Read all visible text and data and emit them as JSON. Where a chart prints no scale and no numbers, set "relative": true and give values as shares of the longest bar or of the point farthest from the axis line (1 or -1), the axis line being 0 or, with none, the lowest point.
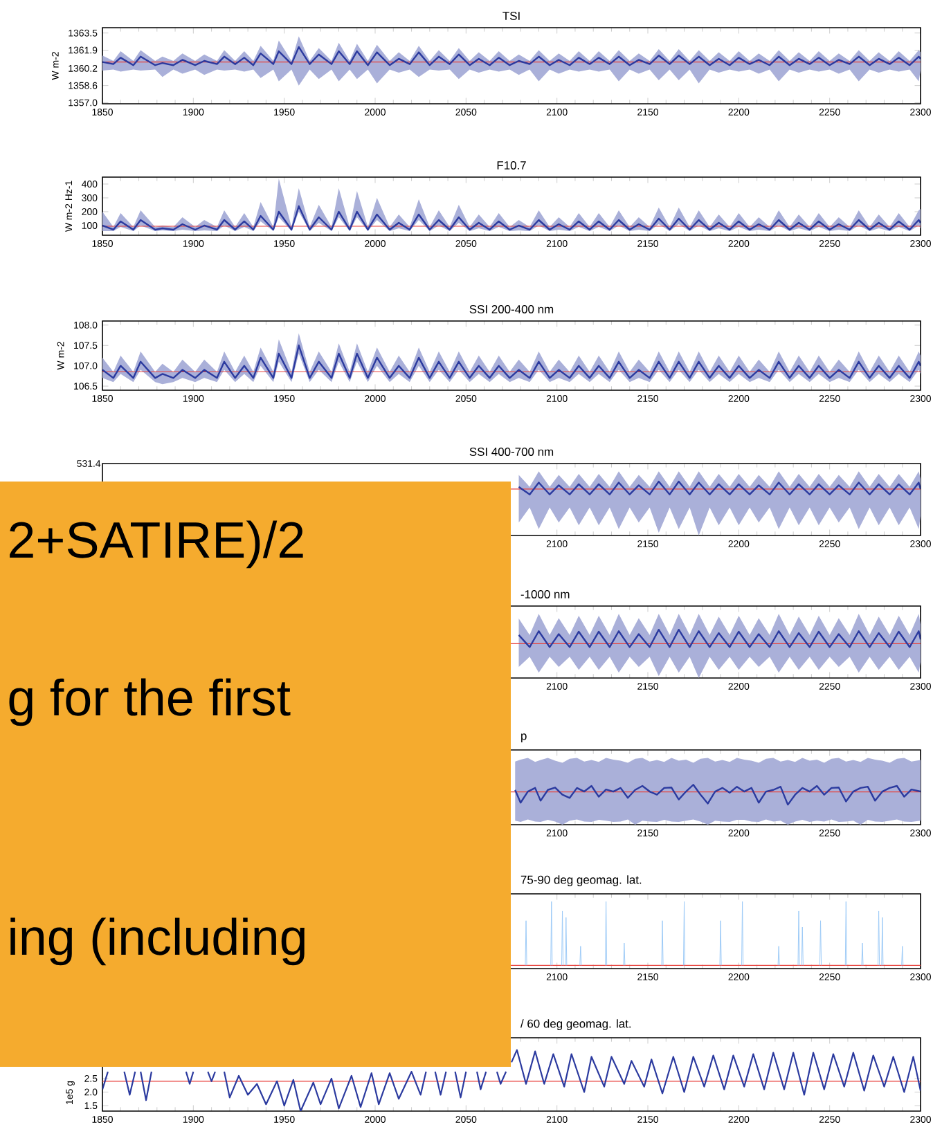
{
  "chart_data": [
    {
      "type": "line",
      "title": "TSI",
      "ylabel": "W m-2",
      "xlim": [
        1850,
        2300
      ],
      "xticks": [
        1850,
        1900,
        1950,
        2000,
        2050,
        2100,
        2150,
        2200,
        2250,
        2300
      ],
      "ylim": [
        1356.9,
        1364.0
      ],
      "yticks": [
        {
          "value": 1357,
          "label": "1357.0"
        },
        1358.6,
        1360.2,
        1361.9,
        1363.5
      ],
      "x": [
        1850,
        1856,
        1860,
        1867,
        1871,
        1879,
        1883,
        1889,
        1894,
        1901,
        1906,
        1913,
        1917,
        1923,
        1928,
        1933,
        1937,
        1944,
        1947,
        1954,
        1958,
        1964,
        1969,
        1976,
        1980,
        1986,
        1990,
        1996,
        2001,
        2008,
        2013,
        2019,
        2024,
        2030,
        2035,
        2041,
        2046,
        2052,
        2057,
        2063,
        2068,
        2074,
        2079,
        2085,
        2090,
        2096,
        2101,
        2107,
        2112,
        2118,
        2123,
        2129,
        2134,
        2140,
        2145,
        2151,
        2156,
        2162,
        2167,
        2173,
        2178,
        2184,
        2189,
        2195,
        2200,
        2206,
        2211,
        2217,
        2222,
        2228,
        2233,
        2239,
        2244,
        2250,
        2255,
        2261,
        2266,
        2272,
        2277,
        2283,
        2288,
        2294,
        2299,
        2300
      ],
      "series": [
        {
          "color": "#2b3a9f",
          "values": [
            1360.8,
            1360.6,
            1361.2,
            1360.5,
            1361.3,
            1360.5,
            1360.7,
            1360.5,
            1361.0,
            1360.5,
            1360.9,
            1360.6,
            1361.3,
            1360.6,
            1361.2,
            1360.5,
            1361.6,
            1360.6,
            1361.8,
            1360.6,
            1362.2,
            1360.6,
            1361.5,
            1360.6,
            1361.8,
            1360.6,
            1361.8,
            1360.5,
            1361.7,
            1360.5,
            1361.1,
            1360.6,
            1361.7,
            1360.5,
            1361.3,
            1360.6,
            1361.5,
            1360.5,
            1361.1,
            1360.5,
            1361.2,
            1360.5,
            1360.9,
            1360.6,
            1361.3,
            1360.5,
            1361.0,
            1360.5,
            1361.2,
            1360.6,
            1361.2,
            1360.6,
            1361.3,
            1360.5,
            1361.0,
            1360.6,
            1361.4,
            1360.6,
            1361.4,
            1360.6,
            1361.3,
            1360.5,
            1361.1,
            1360.5,
            1361.2,
            1360.6,
            1361.0,
            1360.5,
            1361.3,
            1360.5,
            1361.1,
            1360.6,
            1361.2,
            1360.5,
            1361.0,
            1360.6,
            1361.3,
            1360.5,
            1361.1,
            1360.6,
            1361.2,
            1360.5,
            1361.3,
            1361.1
          ],
          "upper": [
            1361.4,
            1360.9,
            1361.8,
            1360.9,
            1361.9,
            1360.9,
            1361.3,
            1360.9,
            1361.6,
            1360.9,
            1361.5,
            1360.9,
            1361.9,
            1360.9,
            1361.8,
            1360.9,
            1362.3,
            1360.9,
            1362.8,
            1360.9,
            1363.2,
            1360.9,
            1362.1,
            1360.9,
            1362.6,
            1360.9,
            1362.5,
            1360.9,
            1362.4,
            1360.9,
            1361.7,
            1360.9,
            1362.3,
            1360.9,
            1361.9,
            1360.9,
            1362.1,
            1360.9,
            1361.7,
            1360.9,
            1361.8,
            1360.9,
            1361.5,
            1360.9,
            1361.9,
            1360.9,
            1361.6,
            1360.9,
            1361.8,
            1360.9,
            1361.8,
            1360.9,
            1361.9,
            1360.9,
            1361.6,
            1360.9,
            1362.0,
            1360.9,
            1362.0,
            1360.9,
            1361.9,
            1360.9,
            1361.7,
            1360.9,
            1361.8,
            1360.9,
            1361.6,
            1360.9,
            1361.9,
            1360.9,
            1361.7,
            1360.9,
            1361.8,
            1360.9,
            1361.6,
            1360.9,
            1361.9,
            1360.9,
            1361.7,
            1360.9,
            1361.8,
            1360.9,
            1361.9,
            1361.7
          ],
          "lower": [
            1360.0,
            1360.1,
            1359.9,
            1360.1,
            1360.0,
            1360.1,
            1359.4,
            1360.1,
            1359.7,
            1360.1,
            1359.6,
            1360.1,
            1360.0,
            1360.1,
            1359.9,
            1360.1,
            1359.3,
            1360.1,
            1359.0,
            1360.1,
            1358.6,
            1360.1,
            1359.2,
            1360.1,
            1359.0,
            1360.1,
            1359.2,
            1360.1,
            1358.8,
            1360.1,
            1359.8,
            1360.1,
            1359.4,
            1360.1,
            1360.0,
            1360.1,
            1359.2,
            1360.1,
            1359.8,
            1360.1,
            1359.9,
            1360.1,
            1359.6,
            1360.1,
            1359.0,
            1360.1,
            1359.7,
            1360.1,
            1359.9,
            1360.1,
            1359.9,
            1360.1,
            1359.0,
            1360.1,
            1359.7,
            1360.1,
            1359.1,
            1360.1,
            1359.1,
            1360.1,
            1358.8,
            1360.1,
            1359.8,
            1360.1,
            1359.9,
            1360.1,
            1359.7,
            1360.1,
            1359.0,
            1360.1,
            1359.8,
            1360.1,
            1359.9,
            1360.1,
            1359.7,
            1360.1,
            1359.0,
            1360.1,
            1359.8,
            1360.1,
            1359.9,
            1360.1,
            1359.0,
            1360.0
          ]
        }
      ],
      "ref_lines": [
        {
          "axis": "y",
          "value": 1360.8,
          "color": "#e8413c"
        }
      ]
    },
    {
      "type": "line",
      "title": "F10.7",
      "ylabel": "W m-2 Hz-1",
      "xlim": [
        1850,
        2300
      ],
      "xticks": [
        1850,
        1900,
        1950,
        2000,
        2050,
        2100,
        2150,
        2200,
        2250,
        2300
      ],
      "ylim": [
        30,
        450
      ],
      "yticks": [
        100,
        200,
        300,
        400
      ],
      "x": [
        1850,
        1856,
        1860,
        1867,
        1871,
        1879,
        1883,
        1889,
        1894,
        1901,
        1906,
        1913,
        1917,
        1923,
        1928,
        1933,
        1937,
        1944,
        1947,
        1954,
        1958,
        1964,
        1969,
        1976,
        1980,
        1986,
        1990,
        1996,
        2001,
        2008,
        2013,
        2019,
        2024,
        2030,
        2035,
        2041,
        2046,
        2052,
        2057,
        2063,
        2068,
        2074,
        2079,
        2085,
        2090,
        2096,
        2101,
        2107,
        2112,
        2118,
        2123,
        2129,
        2134,
        2140,
        2145,
        2151,
        2156,
        2162,
        2167,
        2173,
        2178,
        2184,
        2189,
        2195,
        2200,
        2206,
        2211,
        2217,
        2222,
        2228,
        2233,
        2239,
        2244,
        2250,
        2255,
        2261,
        2266,
        2272,
        2277,
        2283,
        2288,
        2294,
        2299,
        2300
      ],
      "series": [
        {
          "color": "#2b3a9f",
          "values": [
            100,
            70,
            130,
            70,
            140,
            70,
            80,
            70,
            110,
            70,
            100,
            70,
            140,
            70,
            130,
            70,
            170,
            70,
            200,
            70,
            240,
            70,
            160,
            70,
            200,
            70,
            200,
            70,
            180,
            70,
            120,
            70,
            180,
            70,
            140,
            70,
            160,
            70,
            120,
            70,
            130,
            70,
            100,
            70,
            140,
            70,
            110,
            70,
            130,
            70,
            130,
            70,
            140,
            70,
            110,
            70,
            150,
            70,
            150,
            70,
            140,
            70,
            120,
            70,
            130,
            70,
            110,
            70,
            140,
            70,
            120,
            70,
            130,
            70,
            110,
            70,
            140,
            70,
            120,
            70,
            130,
            70,
            140,
            120
          ],
          "upper": [
            200,
            90,
            190,
            90,
            210,
            90,
            100,
            90,
            160,
            90,
            140,
            90,
            210,
            90,
            190,
            90,
            270,
            90,
            440,
            90,
            370,
            90,
            250,
            90,
            370,
            90,
            350,
            90,
            300,
            90,
            180,
            90,
            290,
            90,
            210,
            90,
            250,
            90,
            180,
            90,
            190,
            90,
            140,
            90,
            210,
            90,
            160,
            90,
            190,
            90,
            190,
            90,
            210,
            90,
            160,
            90,
            230,
            90,
            230,
            90,
            210,
            90,
            180,
            90,
            190,
            90,
            160,
            90,
            210,
            90,
            180,
            90,
            190,
            90,
            160,
            90,
            210,
            90,
            180,
            90,
            190,
            90,
            210,
            220
          ],
          "lower": [
            60,
            60,
            90,
            60,
            100,
            60,
            65,
            60,
            70,
            60,
            65,
            60,
            100,
            60,
            90,
            60,
            130,
            60,
            160,
            60,
            200,
            60,
            120,
            60,
            160,
            60,
            160,
            60,
            140,
            60,
            80,
            60,
            140,
            60,
            100,
            60,
            120,
            60,
            80,
            60,
            90,
            60,
            65,
            60,
            100,
            60,
            70,
            60,
            90,
            60,
            90,
            60,
            100,
            60,
            70,
            60,
            110,
            60,
            110,
            60,
            100,
            60,
            80,
            60,
            90,
            60,
            70,
            60,
            100,
            60,
            80,
            60,
            90,
            60,
            70,
            60,
            100,
            60,
            80,
            60,
            90,
            60,
            100,
            80
          ]
        }
      ],
      "ref_lines": [
        {
          "axis": "y",
          "value": 95,
          "color": "#e8413c"
        }
      ]
    },
    {
      "type": "line",
      "title": "SSI 200-400 nm",
      "ylabel": "W m-2",
      "xlim": [
        1850,
        2300
      ],
      "xticks": [
        1850,
        1900,
        1950,
        2000,
        2050,
        2100,
        2150,
        2200,
        2250,
        2300
      ],
      "ylim": [
        106.4,
        108.1
      ],
      "yticks": [
        106.5,
        {
          "value": 107,
          "label": "107.0"
        },
        107.5,
        {
          "value": 108,
          "label": "108.0"
        }
      ],
      "x": [
        1850,
        1856,
        1860,
        1867,
        1871,
        1879,
        1883,
        1889,
        1894,
        1901,
        1906,
        1913,
        1917,
        1923,
        1928,
        1933,
        1937,
        1944,
        1947,
        1954,
        1958,
        1964,
        1969,
        1976,
        1980,
        1986,
        1990,
        1996,
        2001,
        2008,
        2013,
        2019,
        2024,
        2030,
        2035,
        2041,
        2046,
        2052,
        2057,
        2063,
        2068,
        2074,
        2079,
        2085,
        2090,
        2096,
        2101,
        2107,
        2112,
        2118,
        2123,
        2129,
        2134,
        2140,
        2145,
        2151,
        2156,
        2162,
        2167,
        2173,
        2178,
        2184,
        2189,
        2195,
        2200,
        2206,
        2211,
        2217,
        2222,
        2228,
        2233,
        2239,
        2244,
        2250,
        2255,
        2261,
        2266,
        2272,
        2277,
        2283,
        2288,
        2294,
        2299,
        2300
      ],
      "series": [
        {
          "color": "#2b3a9f",
          "values": [
            106.9,
            106.7,
            107.0,
            106.7,
            107.1,
            106.7,
            106.8,
            106.7,
            106.9,
            106.7,
            106.9,
            106.7,
            107.1,
            106.7,
            107.0,
            106.7,
            107.2,
            106.7,
            107.3,
            106.7,
            107.5,
            106.7,
            107.1,
            106.7,
            107.3,
            106.7,
            107.3,
            106.7,
            107.2,
            106.7,
            107.0,
            106.7,
            107.2,
            106.7,
            107.1,
            106.7,
            107.1,
            106.7,
            107.0,
            106.7,
            107.0,
            106.7,
            106.9,
            106.7,
            107.1,
            106.7,
            106.9,
            106.7,
            107.0,
            106.7,
            107.0,
            106.7,
            107.1,
            106.7,
            106.9,
            106.7,
            107.1,
            106.7,
            107.1,
            106.7,
            107.1,
            106.7,
            107.0,
            106.7,
            107.0,
            106.7,
            106.9,
            106.7,
            107.1,
            106.7,
            107.0,
            106.7,
            107.0,
            106.7,
            106.9,
            106.7,
            107.1,
            106.7,
            107.0,
            106.7,
            107.0,
            106.7,
            107.1,
            107.0
          ],
          "upper": [
            107.2,
            106.85,
            107.25,
            106.85,
            107.35,
            106.85,
            107.05,
            106.85,
            107.15,
            106.85,
            107.15,
            106.85,
            107.35,
            106.85,
            107.25,
            106.85,
            107.45,
            106.85,
            107.65,
            106.85,
            107.8,
            106.85,
            107.35,
            106.85,
            107.55,
            106.85,
            107.55,
            106.85,
            107.45,
            106.85,
            107.25,
            106.85,
            107.45,
            106.85,
            107.35,
            106.85,
            107.35,
            106.85,
            107.25,
            106.85,
            107.25,
            106.85,
            107.15,
            106.85,
            107.35,
            106.85,
            107.15,
            106.85,
            107.25,
            106.85,
            107.25,
            106.85,
            107.35,
            106.85,
            107.15,
            106.85,
            107.35,
            106.85,
            107.35,
            106.85,
            107.35,
            106.85,
            107.25,
            106.85,
            107.25,
            106.85,
            107.15,
            106.85,
            107.35,
            106.85,
            107.25,
            106.85,
            107.25,
            106.85,
            107.15,
            106.85,
            107.35,
            106.85,
            107.25,
            106.85,
            107.25,
            106.85,
            107.35,
            107.25
          ],
          "lower": [
            106.7,
            106.6,
            106.8,
            106.6,
            106.9,
            106.6,
            106.55,
            106.6,
            106.7,
            106.6,
            106.7,
            106.6,
            106.9,
            106.6,
            106.8,
            106.6,
            107.0,
            106.6,
            107.1,
            106.6,
            107.3,
            106.6,
            106.9,
            106.6,
            107.1,
            106.6,
            107.1,
            106.6,
            107.0,
            106.6,
            106.8,
            106.6,
            107.0,
            106.6,
            106.9,
            106.6,
            106.9,
            106.6,
            106.8,
            106.6,
            106.8,
            106.6,
            106.7,
            106.6,
            106.9,
            106.6,
            106.7,
            106.6,
            106.8,
            106.6,
            106.8,
            106.6,
            106.9,
            106.6,
            106.7,
            106.6,
            106.9,
            106.6,
            106.9,
            106.6,
            106.9,
            106.6,
            106.8,
            106.6,
            106.8,
            106.6,
            106.7,
            106.6,
            106.9,
            106.6,
            106.8,
            106.6,
            106.8,
            106.6,
            106.7,
            106.6,
            106.9,
            106.6,
            106.8,
            106.6,
            106.8,
            106.6,
            106.9,
            106.8
          ]
        }
      ],
      "ref_lines": [
        {
          "axis": "y",
          "value": 106.85,
          "color": "#e8413c"
        }
      ]
    },
    {
      "type": "line",
      "title": "SSI 400-700 nm",
      "relative": true,
      "xlim": [
        1850,
        2300
      ],
      "xticks": [
        2100,
        2150,
        2200,
        2250,
        2300
      ],
      "annotations": [
        "531.4"
      ],
      "x": [
        2079,
        2085,
        2090,
        2096,
        2101,
        2107,
        2112,
        2118,
        2123,
        2129,
        2134,
        2140,
        2145,
        2151,
        2156,
        2162,
        2167,
        2173,
        2178,
        2184,
        2189,
        2195,
        2200,
        2206,
        2211,
        2217,
        2222,
        2228,
        2233,
        2239,
        2244,
        2250,
        2255,
        2261,
        2266,
        2272,
        2277,
        2283,
        2288,
        2294,
        2299,
        2300
      ],
      "series": [
        {
          "color": "#2b3a9f",
          "values": [
            0.9,
            0.76,
            0.98,
            0.76,
            0.93,
            0.76,
            0.95,
            0.76,
            0.95,
            0.76,
            0.98,
            0.76,
            0.93,
            0.76,
            1.0,
            0.76,
            1.0,
            0.76,
            0.98,
            0.76,
            0.95,
            0.76,
            0.95,
            0.76,
            0.93,
            0.76,
            0.98,
            0.76,
            0.95,
            0.76,
            0.95,
            0.76,
            0.93,
            0.76,
            0.98,
            0.76,
            0.95,
            0.76,
            0.95,
            0.76,
            0.98,
            0.86
          ],
          "upper": [
            1.12,
            0.9,
            1.19,
            0.9,
            1.12,
            0.9,
            1.14,
            0.9,
            1.14,
            0.9,
            1.19,
            0.9,
            1.12,
            0.9,
            1.19,
            0.9,
            1.19,
            0.9,
            1.19,
            0.9,
            1.14,
            0.9,
            1.14,
            0.9,
            1.12,
            0.9,
            1.19,
            0.9,
            1.14,
            0.9,
            1.14,
            0.9,
            1.12,
            0.9,
            1.19,
            0.9,
            1.14,
            0.9,
            1.14,
            0.9,
            1.19,
            1.05
          ],
          "lower": [
            0.24,
            0.52,
            0.12,
            0.52,
            0.24,
            0.52,
            0.19,
            0.52,
            0.19,
            0.52,
            0.12,
            0.52,
            0.24,
            0.52,
            0.05,
            0.52,
            0.12,
            0.52,
            0,
            0.52,
            0.19,
            0.52,
            0.19,
            0.52,
            0.24,
            0.52,
            0.12,
            0.52,
            0.19,
            0.52,
            0.19,
            0.52,
            0.24,
            0.52,
            0.12,
            0.52,
            0.19,
            0.52,
            0.19,
            0.52,
            0.12,
            0.36
          ]
        }
      ],
      "ref_lines": [
        {
          "axis": "y",
          "value": 0.86,
          "color": "#e8413c"
        }
      ]
    },
    {
      "type": "line",
      "title": "-1000 nm",
      "relative": true,
      "xlim": [
        1850,
        2300
      ],
      "xticks": [
        2100,
        2150,
        2200,
        2250,
        2300
      ],
      "x": [
        2079,
        2085,
        2090,
        2096,
        2101,
        2107,
        2112,
        2118,
        2123,
        2129,
        2134,
        2140,
        2145,
        2151,
        2156,
        2162,
        2167,
        2173,
        2178,
        2184,
        2189,
        2195,
        2200,
        2206,
        2211,
        2217,
        2222,
        2228,
        2233,
        2239,
        2244,
        2250,
        2255,
        2261,
        2266,
        2272,
        2277,
        2283,
        2288,
        2294,
        2299,
        2300
      ],
      "series": [
        {
          "color": "#2b3a9f",
          "values": [
            0.89,
            0.64,
            0.97,
            0.64,
            0.91,
            0.64,
            0.96,
            0.64,
            0.96,
            0.64,
            0.97,
            0.64,
            0.91,
            0.64,
            1.0,
            0.64,
            1.0,
            0.64,
            0.97,
            0.64,
            0.93,
            0.64,
            0.96,
            0.64,
            0.91,
            0.64,
            0.97,
            0.64,
            0.93,
            0.64,
            0.96,
            0.64,
            0.91,
            0.64,
            0.97,
            0.64,
            0.93,
            0.64,
            0.96,
            0.64,
            0.97,
            0.8
          ],
          "upper": [
            1.23,
            0.89,
            1.33,
            0.89,
            1.24,
            0.89,
            1.29,
            0.89,
            1.29,
            0.89,
            1.33,
            0.89,
            1.24,
            0.89,
            1.33,
            0.89,
            1.33,
            0.89,
            1.33,
            0.89,
            1.27,
            0.89,
            1.29,
            0.89,
            1.24,
            0.89,
            1.33,
            0.89,
            1.27,
            0.89,
            1.29,
            0.89,
            1.24,
            0.89,
            1.33,
            0.89,
            1.27,
            0.89,
            1.29,
            0.89,
            1.33,
            1.11
          ],
          "lower": [
            0.23,
            0.44,
            0.11,
            0.44,
            0.23,
            0.44,
            0.17,
            0.44,
            0.17,
            0.44,
            0.11,
            0.44,
            0.23,
            0.44,
            0.04,
            0.44,
            0.11,
            0.44,
            0,
            0.44,
            0.17,
            0.44,
            0.17,
            0.44,
            0.23,
            0.44,
            0.11,
            0.44,
            0.17,
            0.44,
            0.17,
            0.44,
            0.23,
            0.44,
            0.11,
            0.44,
            0.17,
            0.44,
            0.17,
            0.44,
            0.11,
            0.33
          ]
        }
      ],
      "ref_lines": [
        {
          "axis": "y",
          "value": 0.71,
          "color": "#e8413c"
        }
      ]
    },
    {
      "type": "line",
      "title": "p",
      "relative": true,
      "xlim": [
        1850,
        2300
      ],
      "xticks": [
        2100,
        2150,
        2200,
        2250,
        2300
      ],
      "x": [
        2077,
        2080,
        2084,
        2088,
        2091,
        2095,
        2099,
        2103,
        2107,
        2111,
        2115,
        2119,
        2123,
        2127,
        2131,
        2135,
        2139,
        2143,
        2147,
        2151,
        2155,
        2159,
        2163,
        2167,
        2171,
        2175,
        2179,
        2183,
        2187,
        2191,
        2195,
        2199,
        2203,
        2207,
        2211,
        2215,
        2219,
        2223,
        2227,
        2231,
        2235,
        2239,
        2243,
        2247,
        2251,
        2255,
        2259,
        2263,
        2267,
        2271,
        2275,
        2279,
        2283,
        2287,
        2291,
        2295,
        2300
      ],
      "series": [
        {
          "color": "#2b3a9f",
          "values": [
            0.87,
            0.55,
            0.83,
            0.92,
            0.6,
            0.87,
            0.93,
            0.75,
            0.67,
            0.92,
            0.83,
            0.97,
            0.7,
            0.88,
            0.83,
            0.92,
            0.67,
            0.87,
            0.97,
            0.83,
            0.75,
            0.92,
            0.93,
            0.63,
            0.83,
            1.0,
            0.75,
            0.53,
            0.83,
            0.92,
            0.8,
            0.95,
            0.83,
            0.92,
            0.55,
            0.83,
            0.87,
            0.95,
            0.5,
            0.75,
            0.92,
            0.83,
            0.97,
            0.75,
            0.92,
            0.93,
            0.58,
            0.83,
            0.92,
            0.95,
            0.6,
            0.83,
            0.92,
            0.97,
            0.7,
            0.88,
            0.83
          ],
          "upper": [
            1.58,
            1.63,
            1.67,
            1.57,
            1.62,
            1.67,
            1.6,
            1.55,
            1.65,
            1.67,
            1.58,
            1.62,
            1.57,
            1.67,
            1.63,
            1.6,
            1.55,
            1.65,
            1.67,
            1.58,
            1.62,
            1.57,
            1.67,
            1.6,
            1.63,
            1.55,
            1.65,
            1.67,
            1.58,
            1.62,
            1.57,
            1.67,
            1.63,
            1.6,
            1.55,
            1.65,
            1.67,
            1.58,
            1.62,
            1.57,
            1.67,
            1.6,
            1.63,
            1.55,
            1.65,
            1.67,
            1.58,
            1.62,
            1.57,
            1.67,
            1.63,
            1.6,
            1.55,
            1.65,
            1.67,
            1.58,
            1.62
          ],
          "lower": [
            0.1,
            0.07,
            0.13,
            0.08,
            0.07,
            0.12,
            0.08,
            0,
            0.1,
            0.13,
            0.08,
            0.07,
            0.12,
            0.1,
            0.07,
            0.08,
            0.13,
            0,
            0.1,
            0.08,
            0.07,
            0.12,
            0.08,
            0.07,
            0.1,
            0.13,
            0.08,
            0,
            0.1,
            0.08,
            0.07,
            0.12,
            0.12,
            0.08,
            0.07,
            0.13,
            0.08,
            0.1,
            0,
            0.08,
            0.12,
            0.07,
            0.1,
            0.08,
            0.13,
            0.07,
            0.08,
            0.1,
            0,
            0.12,
            0.08,
            0.07,
            0.1,
            0.13,
            0.08,
            0.07,
            0.1
          ]
        }
      ],
      "ref_lines": [
        {
          "axis": "y",
          "value": 0.82,
          "color": "#e8413c"
        }
      ]
    },
    {
      "type": "line",
      "title": "75-90 deg geomag. lat.",
      "relative": true,
      "xlim": [
        1850,
        2300
      ],
      "xticks": [
        2100,
        2150,
        2200,
        2250,
        2300
      ],
      "x": [
        2082.6,
        2083,
        2083.4,
        2084,
        2096.6,
        2097,
        2097.4,
        2098,
        2102.6,
        2103,
        2103.4,
        2104,
        2104.6,
        2105,
        2105.4,
        2106,
        2112.6,
        2113,
        2113.4,
        2114,
        2126.6,
        2127,
        2127.4,
        2128,
        2136.6,
        2137,
        2137.4,
        2138,
        2157.6,
        2158,
        2158.4,
        2159,
        2169.6,
        2170,
        2170.4,
        2171,
        2189.6,
        2190,
        2190.4,
        2191,
        2201.6,
        2202,
        2202.4,
        2203,
        2221.6,
        2222,
        2222.4,
        2223,
        2232.6,
        2233,
        2233.4,
        2234,
        2234.6,
        2235,
        2235.4,
        2236,
        2244.6,
        2245,
        2245.4,
        2246,
        2258.6,
        2259,
        2259.4,
        2260,
        2267.6,
        2268,
        2268.4,
        2269,
        2276.6,
        2277,
        2277.4,
        2278,
        2278.6,
        2279,
        2279.4,
        2280,
        2289.6,
        2290,
        2290.4
      ],
      "series": [
        {
          "color": "#9ecbf7",
          "values": [
            0,
            0.7,
            0,
            null,
            0,
            1,
            0,
            null,
            0,
            0.85,
            0,
            null,
            0,
            0.75,
            0,
            null,
            0,
            0.3,
            0,
            null,
            0,
            1,
            0,
            null,
            0,
            0.35,
            0,
            null,
            0,
            0.7,
            0,
            null,
            0,
            1,
            0,
            null,
            0,
            0.7,
            0,
            null,
            0,
            1,
            0,
            null,
            0,
            0.3,
            0,
            null,
            0,
            0.85,
            0,
            null,
            0,
            0.6,
            0,
            null,
            0,
            0.7,
            0,
            null,
            0,
            1,
            0,
            null,
            0,
            0.35,
            0,
            null,
            0,
            0.85,
            0,
            null,
            0,
            0.75,
            0,
            null,
            0,
            0.3,
            0
          ]
        }
      ],
      "ref_lines": [
        {
          "axis": "y",
          "value": 0,
          "color": "#e8413c"
        }
      ]
    },
    {
      "type": "line",
      "title": "/ 60 deg geomag. lat.",
      "ylabel": "1e5 g",
      "xlim": [
        1850,
        2300
      ],
      "xticks": [
        1850,
        1900,
        1950,
        2000,
        2050,
        2100,
        2150,
        2200,
        2250,
        2300
      ],
      "ylim": [
        1.3,
        4.0
      ],
      "yticks": [
        1.5,
        {
          "value": 2,
          "label": "2.0"
        },
        2.5
      ],
      "x": [
        1850,
        1853,
        1857,
        1862,
        1865,
        1868,
        1870,
        1871,
        1874,
        1877,
        1880,
        1888,
        1893,
        1896,
        1898,
        1900,
        1903,
        1908,
        1910,
        1912,
        1915,
        1917,
        1920,
        1925,
        1930,
        1935,
        1940,
        1946,
        1950,
        1955,
        1959,
        1966,
        1970,
        1976,
        1980,
        1987,
        1992,
        1998,
        2002,
        2008,
        2013,
        2020,
        2025,
        2028,
        2030,
        2033,
        2036,
        2039,
        2042,
        2044,
        2047,
        2050,
        2053,
        2056,
        2058,
        2061,
        2064,
        2067,
        2069,
        2072,
        2074,
        2075,
        2078,
        2083,
        2088,
        2093,
        2098,
        2104,
        2108,
        2115,
        2119,
        2126,
        2130,
        2137,
        2141,
        2148,
        2152,
        2158,
        2164,
        2170,
        2175,
        2181,
        2186,
        2192,
        2197,
        2203,
        2208,
        2214,
        2219,
        2225,
        2230,
        2236,
        2241,
        2247,
        2252,
        2258,
        2263,
        2269,
        2274,
        2280,
        2285,
        2291,
        2296,
        2300
      ],
      "series": [
        {
          "color": "#2b3a9f",
          "values": [
            2.1,
            2.75,
            null,
            2.75,
            1.9,
            2.75,
            null,
            2.75,
            1.7,
            2.75,
            null,
            null,
            null,
            2.75,
            2.3,
            2.75,
            null,
            2.75,
            2.4,
            2.75,
            null,
            2.75,
            1.8,
            2.6,
            1.9,
            2.3,
            1.55,
            2.4,
            1.5,
            2.45,
            1.3,
            2.35,
            1.55,
            2.5,
            1.4,
            2.6,
            1.45,
            2.7,
            1.55,
            2.7,
            1.75,
            2.75,
            1.9,
            2.75,
            null,
            2.75,
            1.9,
            2.75,
            null,
            2.75,
            1.8,
            2.75,
            null,
            2.75,
            2.1,
            2.75,
            null,
            2.75,
            2.3,
            2.75,
            null,
            3.1,
            3.55,
            2.3,
            3.5,
            2.3,
            3.4,
            2.2,
            3.4,
            2.0,
            3.3,
            2.2,
            3.3,
            2.3,
            3.15,
            2.2,
            3.2,
            1.95,
            3.3,
            2.0,
            3.3,
            2.2,
            3.35,
            2.1,
            3.35,
            2.2,
            3.4,
            2.1,
            3.45,
            2.1,
            3.45,
            1.9,
            3.45,
            2.1,
            3.4,
            2.2,
            3.45,
            2.05,
            3.35,
            2.2,
            3.3,
            2.0,
            3.3,
            2.05
          ]
        }
      ],
      "ref_lines": [
        {
          "axis": "y",
          "value": 2.4,
          "color": "#e8413c"
        }
      ]
    },
    {
      "type": "other",
      "color": "#f5ab2e",
      "annotations": [
        "2+SATIRE)/2",
        "g for the first",
        "ing (including"
      ]
    }
  ]
}
